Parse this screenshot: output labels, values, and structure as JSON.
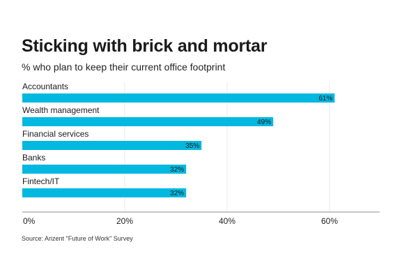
{
  "title": "Sticking with brick and mortar",
  "subtitle": "% who plan to keep their current office footprint",
  "source": "Source: Arizent \"Future of Work\" Survey",
  "colors": {
    "bar": "#00b8e0",
    "grid": "#e8e8e8",
    "axis": "#8c8c8c",
    "text": "#1a1a1a"
  },
  "chart_data": {
    "type": "bar",
    "orientation": "horizontal",
    "categories": [
      "Accountants",
      "Wealth management",
      "Financial services",
      "Banks",
      "Fintech/IT"
    ],
    "values": [
      61,
      49,
      35,
      32,
      32
    ],
    "data_labels": [
      "61%",
      "49%",
      "35%",
      "32%",
      "32%"
    ],
    "xlim": [
      0,
      70
    ],
    "xticks": [
      0,
      20,
      40,
      60
    ],
    "xtick_labels": [
      "0%",
      "20%",
      "40%",
      "60%"
    ],
    "grid": true,
    "legend": "none"
  }
}
